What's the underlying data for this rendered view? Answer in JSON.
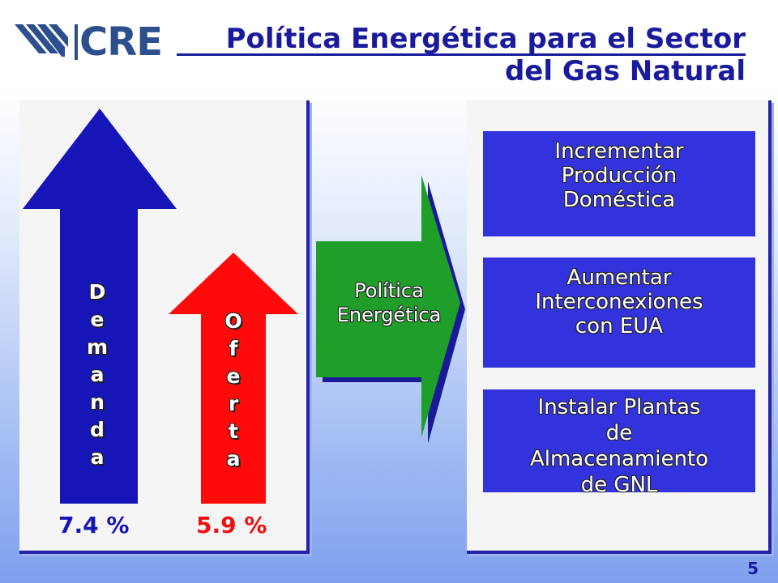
{
  "header": {
    "logo_text": "CRE",
    "title_line1": "Política Energética para el Sector",
    "title_line2": "del Gas Natural"
  },
  "left_panel": {
    "demand": {
      "label": "D\ne\nm\na\nn\nd\na",
      "percent": "7.4 %",
      "color": "#1616b8"
    },
    "supply": {
      "label": "O\nf\ne\nr\nt\na",
      "percent": "5.9 %",
      "color": "#ff0a0a"
    }
  },
  "policy_arrow": {
    "line1": "Política",
    "line2": "Energética",
    "color": "#1f9e2a"
  },
  "measures": [
    {
      "lines": [
        "Incrementar",
        "Producción",
        "Doméstica"
      ]
    },
    {
      "lines": [
        "Aumentar",
        "Interconexiones",
        "con EUA"
      ]
    },
    {
      "lines": [
        "Instalar Plantas",
        "de",
        "Almacenamiento",
        "de GNL"
      ]
    }
  ],
  "page_number": "5"
}
